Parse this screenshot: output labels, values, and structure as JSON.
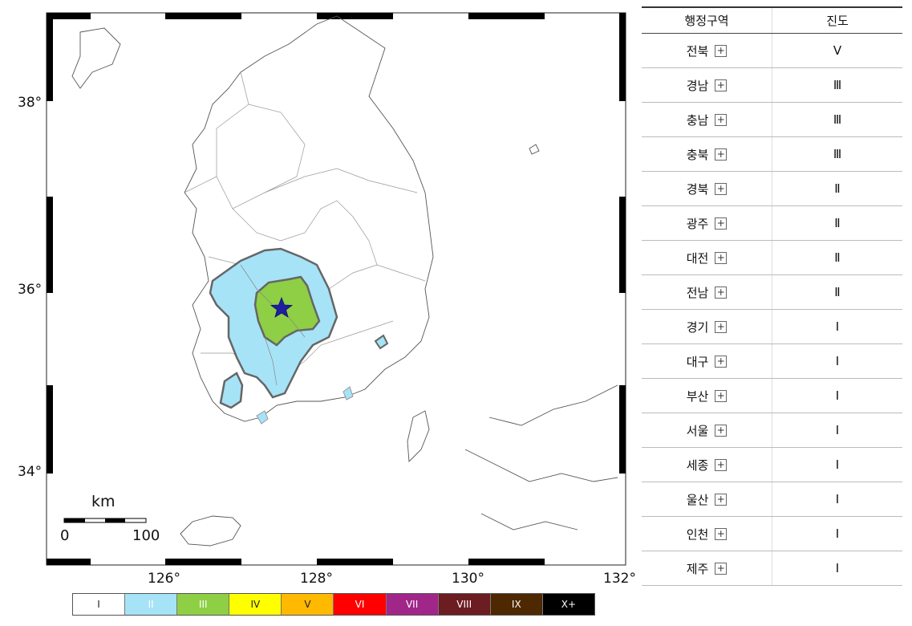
{
  "map": {
    "lat_labels": [
      "38°",
      "36°",
      "34°"
    ],
    "lon_labels": [
      "126°",
      "128°",
      "130°",
      "132°"
    ],
    "scale": {
      "unit": "km",
      "start": "0",
      "end": "100"
    },
    "epicenter_icon": "star-icon"
  },
  "legend": [
    {
      "label": "I",
      "color": "#ffffff",
      "text_color": "#222222"
    },
    {
      "label": "II",
      "color": "#a6e3f7",
      "text_color": "#ffffff"
    },
    {
      "label": "III",
      "color": "#8ecf45",
      "text_color": "#ffffff"
    },
    {
      "label": "IV",
      "color": "#ffff00",
      "text_color": "#222222"
    },
    {
      "label": "V",
      "color": "#ffb900",
      "text_color": "#222222"
    },
    {
      "label": "VI",
      "color": "#ff0000",
      "text_color": "#ffffff"
    },
    {
      "label": "VII",
      "color": "#a0268a",
      "text_color": "#ffffff"
    },
    {
      "label": "VIII",
      "color": "#6b1d22",
      "text_color": "#ffffff"
    },
    {
      "label": "IX",
      "color": "#4d2800",
      "text_color": "#ffffff"
    },
    {
      "label": "X+",
      "color": "#000000",
      "text_color": "#ffffff"
    }
  ],
  "table": {
    "headers": [
      "행정구역",
      "진도"
    ],
    "rows": [
      {
        "region": "전북",
        "intensity": "Ⅴ"
      },
      {
        "region": "경남",
        "intensity": "Ⅲ"
      },
      {
        "region": "충남",
        "intensity": "Ⅲ"
      },
      {
        "region": "충북",
        "intensity": "Ⅲ"
      },
      {
        "region": "경북",
        "intensity": "Ⅱ"
      },
      {
        "region": "광주",
        "intensity": "Ⅱ"
      },
      {
        "region": "대전",
        "intensity": "Ⅱ"
      },
      {
        "region": "전남",
        "intensity": "Ⅱ"
      },
      {
        "region": "경기",
        "intensity": "Ⅰ"
      },
      {
        "region": "대구",
        "intensity": "Ⅰ"
      },
      {
        "region": "부산",
        "intensity": "Ⅰ"
      },
      {
        "region": "서울",
        "intensity": "Ⅰ"
      },
      {
        "region": "세종",
        "intensity": "Ⅰ"
      },
      {
        "region": "울산",
        "intensity": "Ⅰ"
      },
      {
        "region": "인천",
        "intensity": "Ⅰ"
      },
      {
        "region": "제주",
        "intensity": "Ⅰ"
      }
    ],
    "expand_icon": "plus-icon"
  }
}
